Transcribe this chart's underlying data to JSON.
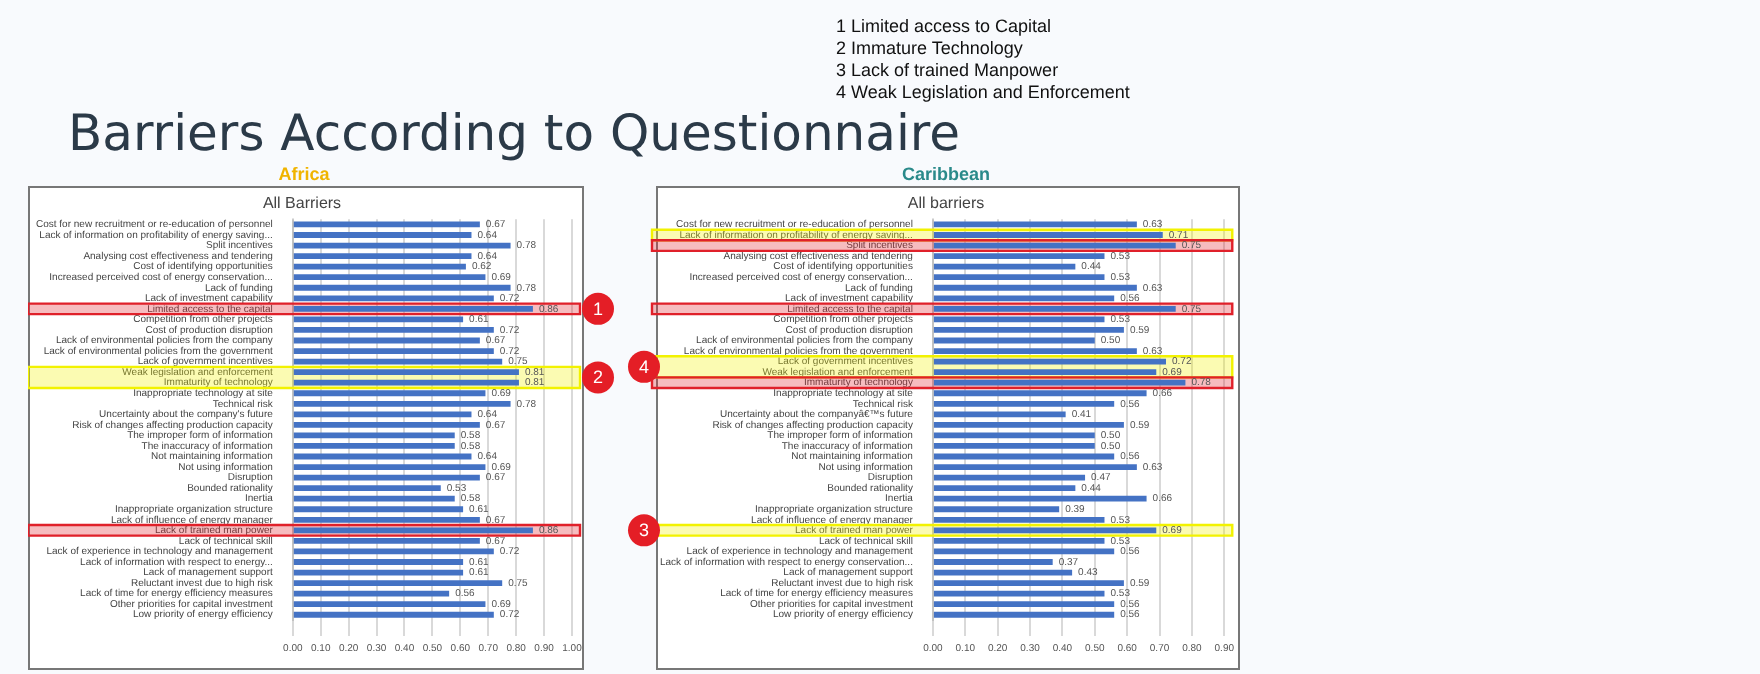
{
  "chart_data": [
    {
      "type": "bar",
      "orientation": "horizontal",
      "title": "All Barriers",
      "subtitle": "Africa",
      "categories": [
        "Cost for new recruitment or re-education of personnel",
        "Lack of information on profitability of energy saving...",
        "Split incentives",
        "Analysing cost effectiveness and tendering",
        "Cost of identifying opportunities",
        "Increased perceived cost of energy conservation...",
        "Lack of funding",
        "Lack of investment capability",
        "Limited access to the capital",
        "Competition from other projects",
        "Cost of production disruption",
        "Lack of environmental policies from the company",
        "Lack of environmental policies from the government",
        "Lack of government incentives",
        "Weak legislation and enforcement",
        "Immaturity of technology",
        "Inappropriate technology at site",
        "Technical risk",
        "Uncertainty about the company's future",
        "Risk of changes affecting production capacity",
        "The improper form of information",
        "The inaccuracy of information",
        "Not maintaining information",
        "Not using information",
        "Disruption",
        "Bounded rationality",
        "Inertia",
        "Inappropriate organization structure",
        "Lack of influence of energy manager",
        "Lack of trained man power",
        "Lack of technical skill",
        "Lack of experience in technology and management",
        "Lack of information with respect to energy...",
        "Lack of management support",
        "Reluctant invest due to high risk",
        "Lack of time for energy efficiency measures",
        "Other priorities for capital investment",
        "Low priority of energy efficiency"
      ],
      "values": [
        0.67,
        0.64,
        0.78,
        0.64,
        0.62,
        0.69,
        0.78,
        0.72,
        0.86,
        0.61,
        0.72,
        0.67,
        0.72,
        0.75,
        0.81,
        0.81,
        0.69,
        0.78,
        0.64,
        0.67,
        0.58,
        0.58,
        0.64,
        0.69,
        0.67,
        0.53,
        0.58,
        0.61,
        0.67,
        0.86,
        0.67,
        0.72,
        0.61,
        0.61,
        0.75,
        0.56,
        0.69,
        0.72
      ],
      "color": "#4472c4",
      "value_labels": [
        "0.67",
        "0.64",
        "0.78",
        "0.64",
        "0.62",
        "0.69",
        "0.78",
        "0.72",
        "0.86",
        "0.61",
        "0.72",
        "0.67",
        "0.72",
        "0.75",
        "0.81",
        "0.81",
        "0.69",
        "0.78",
        "0.64",
        "0.67",
        "0.58",
        "0.58",
        "0.64",
        "0.69",
        "0.67",
        "0.53",
        "0.58",
        "0.61",
        "0.67",
        "0.86",
        "0.67",
        "0.72",
        "0.61",
        "0.61",
        "0.75",
        "0.56",
        "0.69",
        "0.72"
      ],
      "xlim": [
        0,
        1
      ],
      "xticks": [
        {
          "value": 0,
          "label": "0.00"
        },
        {
          "value": 0.1,
          "label": "0.10"
        },
        {
          "value": 0.2,
          "label": "0.20"
        },
        {
          "value": 0.3,
          "label": "0.30"
        },
        {
          "value": 0.4,
          "label": "0.40"
        },
        {
          "value": 0.5,
          "label": "0.50"
        },
        {
          "value": 0.6,
          "label": "0.60"
        },
        {
          "value": 0.7,
          "label": "0.70"
        },
        {
          "value": 0.8,
          "label": "0.80"
        },
        {
          "value": 0.9,
          "label": "0.90"
        },
        {
          "value": 1,
          "label": "1.00"
        }
      ],
      "grid": "x",
      "legend": false,
      "bands": [
        {
          "axis": "y",
          "from": "Limited access to the capital",
          "to": "Limited access to the capital",
          "color": "#e0202a",
          "label": "1"
        },
        {
          "axis": "y",
          "from": "Weak legislation and enforcement",
          "to": "Immaturity of technology",
          "color": "#f2f200",
          "label": "2"
        },
        {
          "axis": "y",
          "from": "Lack of trained man power",
          "to": "Lack of trained man power",
          "color": "#e0202a"
        }
      ],
      "annotations": [
        "Barriers According to Questionnaire",
        "1 Limited access to Capital",
        "2 Immature Technology",
        "3 Lack of trained Manpower",
        "4 Weak Legislation and Enforcement"
      ]
    },
    {
      "type": "bar",
      "orientation": "horizontal",
      "title": "All barriers",
      "subtitle": "Caribbean",
      "categories": [
        "Cost for new recruitment or re-education of personnel",
        "Lack of information on profitability of energy saving...",
        "Split incentives",
        "Analysing cost effectiveness and tendering",
        "Cost of identifying opportunities",
        "Increased perceived cost of energy conservation...",
        "Lack of funding",
        "Lack of investment capability",
        "Limited access to the capital",
        "Competition from other projects",
        "Cost of production disruption",
        "Lack of environmental policies from the company",
        "Lack of environmental policies from the government",
        "Lack of government incentives",
        "Weak legislation and enforcement",
        "Immaturity of technology",
        "Inappropriate technology at site",
        "Technical risk",
        "Uncertainty about the companyâ€™s future",
        "Risk of changes affecting production capacity",
        "The improper form of information",
        "The inaccuracy of information",
        "Not maintaining information",
        "Not using information",
        "Disruption",
        "Bounded rationality",
        "Inertia",
        "Inappropriate organization structure",
        "Lack of influence of energy manager",
        "Lack of trained man power",
        "Lack of technical skill",
        "Lack of experience in technology and management",
        "Lack of information with respect to energy conservation...",
        "Lack of management support",
        "Reluctant invest due to high risk",
        "Lack of time for energy efficiency measures",
        "Other priorities for capital investment",
        "Low priority of energy efficiency"
      ],
      "values": [
        0.63,
        0.71,
        0.75,
        0.53,
        0.44,
        0.53,
        0.63,
        0.56,
        0.75,
        0.53,
        0.59,
        0.5,
        0.63,
        0.72,
        0.69,
        0.78,
        0.66,
        0.56,
        0.41,
        0.59,
        0.5,
        0.5,
        0.56,
        0.63,
        0.47,
        0.44,
        0.66,
        0.39,
        0.53,
        0.69,
        0.53,
        0.56,
        0.37,
        0.43,
        0.59,
        0.53,
        0.56,
        0.56
      ],
      "color": "#4472c4",
      "value_labels": [
        "0.63",
        "0.71",
        "0.75",
        "0.53",
        "0.44",
        "0.53",
        "0.63",
        "0.56",
        "0.75",
        "0.53",
        "0.59",
        "0.50",
        "0.63",
        "0.72",
        "0.69",
        "0.78",
        "0.66",
        "0.56",
        "0.41",
        "0.59",
        "0.50",
        "0.50",
        "0.56",
        "0.63",
        "0.47",
        "0.44",
        "0.66",
        "0.39",
        "0.53",
        "0.69",
        "0.53",
        "0.56",
        "0.37",
        "0.43",
        "0.59",
        "0.53",
        "0.56",
        "0.56"
      ],
      "xlim": [
        0,
        0.9
      ],
      "xticks": [
        {
          "value": 0,
          "label": "0.00"
        },
        {
          "value": 0.1,
          "label": "0.10"
        },
        {
          "value": 0.2,
          "label": "0.20"
        },
        {
          "value": 0.3,
          "label": "0.30"
        },
        {
          "value": 0.4,
          "label": "0.40"
        },
        {
          "value": 0.5,
          "label": "0.50"
        },
        {
          "value": 0.6,
          "label": "0.60"
        },
        {
          "value": 0.7,
          "label": "0.70"
        },
        {
          "value": 0.8,
          "label": "0.80"
        },
        {
          "value": 0.9,
          "label": "0.90"
        }
      ],
      "grid": "x",
      "legend": false,
      "bands": [
        {
          "axis": "y",
          "from": "Lack of information on profitability of energy saving...",
          "to": "Lack of information on profitability of energy saving...",
          "color": "#f2f200"
        },
        {
          "axis": "y",
          "from": "Split incentives",
          "to": "Split incentives",
          "color": "#e0202a"
        },
        {
          "axis": "y",
          "from": "Limited access to the capital",
          "to": "Limited access to the capital",
          "color": "#e0202a"
        },
        {
          "axis": "y",
          "from": "Lack of government incentives",
          "to": "Weak legislation and enforcement",
          "color": "#f2f200",
          "label": "4"
        },
        {
          "axis": "y",
          "from": "Immaturity of technology",
          "to": "Immaturity of technology",
          "color": "#e0202a"
        },
        {
          "axis": "y",
          "from": "Lack of trained man power",
          "to": "Lack of trained man power",
          "color": "#f2f200",
          "label": "3"
        }
      ]
    }
  ]
}
